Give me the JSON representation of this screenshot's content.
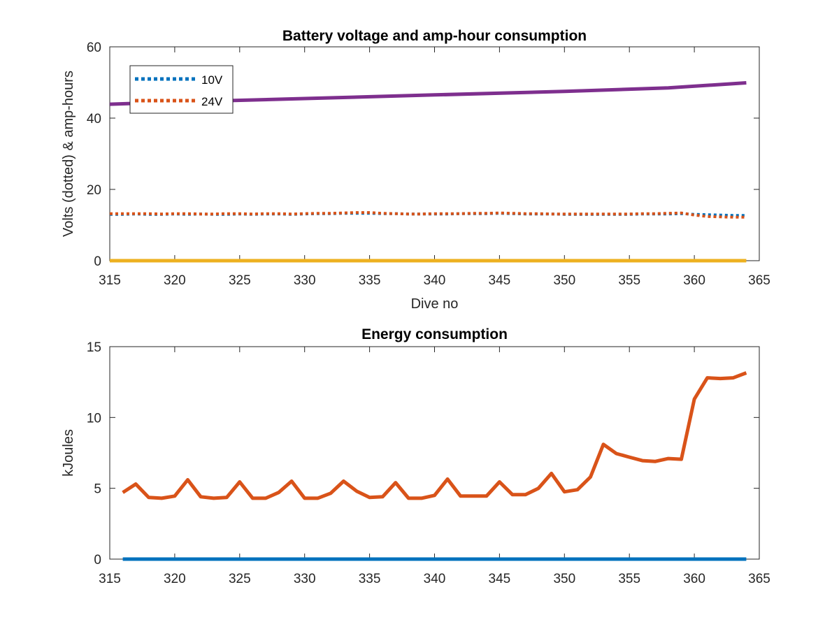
{
  "chart_data": [
    {
      "type": "line",
      "title": "Battery voltage and amp-hour consumption",
      "xlabel": "Dive no",
      "ylabel": "Volts (dotted) & amp-hours",
      "xlim": [
        315,
        365
      ],
      "ylim": [
        0,
        60
      ],
      "xticks": [
        315,
        320,
        325,
        330,
        335,
        340,
        345,
        350,
        355,
        360,
        365
      ],
      "yticks": [
        0,
        20,
        40,
        60
      ],
      "grid": false,
      "legend_location": "top-left",
      "series": [
        {
          "name": "10V",
          "color": "#0072BD",
          "style": "dotted",
          "x": [
            315,
            316,
            317,
            318,
            319,
            320,
            321,
            322,
            323,
            324,
            325,
            326,
            327,
            328,
            329,
            330,
            331,
            332,
            333,
            334,
            335,
            336,
            337,
            338,
            339,
            340,
            341,
            342,
            343,
            344,
            345,
            346,
            347,
            348,
            349,
            350,
            351,
            352,
            353,
            354,
            355,
            356,
            357,
            358,
            359,
            360,
            361,
            362,
            363,
            364
          ],
          "y": [
            13.0,
            13.0,
            13.1,
            13.0,
            13.0,
            13.1,
            13.0,
            13.1,
            13.0,
            13.0,
            13.1,
            13.0,
            13.1,
            13.1,
            13.0,
            13.1,
            13.2,
            13.2,
            13.3,
            13.3,
            13.3,
            13.2,
            13.2,
            13.1,
            13.1,
            13.1,
            13.1,
            13.2,
            13.2,
            13.2,
            13.3,
            13.2,
            13.1,
            13.1,
            13.1,
            13.0,
            13.0,
            13.0,
            13.0,
            13.0,
            13.0,
            13.1,
            13.1,
            13.1,
            13.2,
            13.0,
            12.9,
            12.8,
            12.7,
            12.7
          ]
        },
        {
          "name": "24V",
          "color": "#D95319",
          "style": "dotted",
          "x": [
            315,
            316,
            317,
            318,
            319,
            320,
            321,
            322,
            323,
            324,
            325,
            326,
            327,
            328,
            329,
            330,
            331,
            332,
            333,
            334,
            335,
            336,
            337,
            338,
            339,
            340,
            341,
            342,
            343,
            344,
            345,
            346,
            347,
            348,
            349,
            350,
            351,
            352,
            353,
            354,
            355,
            356,
            357,
            358,
            359,
            360,
            361,
            362,
            363,
            364
          ],
          "y": [
            13.2,
            13.2,
            13.2,
            13.2,
            13.1,
            13.2,
            13.2,
            13.1,
            13.1,
            13.2,
            13.2,
            13.1,
            13.2,
            13.2,
            13.1,
            13.2,
            13.3,
            13.3,
            13.4,
            13.5,
            13.5,
            13.3,
            13.2,
            13.1,
            13.1,
            13.2,
            13.2,
            13.2,
            13.3,
            13.3,
            13.4,
            13.3,
            13.2,
            13.2,
            13.1,
            13.1,
            13.1,
            13.1,
            13.1,
            13.1,
            13.1,
            13.2,
            13.2,
            13.3,
            13.4,
            12.8,
            12.4,
            12.3,
            12.2,
            12.2
          ]
        },
        {
          "color": "#7E2F8E",
          "style": "solid",
          "x": [
            315,
            320,
            330,
            340,
            350,
            358,
            364
          ],
          "y": [
            43.9,
            44.5,
            45.5,
            46.5,
            47.5,
            48.5,
            49.9
          ]
        },
        {
          "color": "#EDB120",
          "style": "solid",
          "x": [
            315,
            364
          ],
          "y": [
            0,
            0
          ]
        }
      ],
      "legend": [
        {
          "label": "10V",
          "color": "#0072BD"
        },
        {
          "label": "24V",
          "color": "#D95319"
        }
      ]
    },
    {
      "type": "line",
      "title": "Energy consumption",
      "xlabel": "",
      "ylabel": "kJoules",
      "xlim": [
        315,
        365
      ],
      "ylim": [
        0,
        15
      ],
      "xticks": [
        315,
        320,
        325,
        330,
        335,
        340,
        345,
        350,
        355,
        360,
        365
      ],
      "yticks": [
        0,
        5,
        10,
        15
      ],
      "grid": false,
      "series": [
        {
          "color": "#D95319",
          "style": "solid",
          "x": [
            316,
            317,
            318,
            319,
            320,
            321,
            322,
            323,
            324,
            325,
            326,
            327,
            328,
            329,
            330,
            331,
            332,
            333,
            334,
            335,
            336,
            337,
            338,
            339,
            340,
            341,
            342,
            343,
            344,
            345,
            346,
            347,
            348,
            349,
            350,
            351,
            352,
            353,
            354,
            355,
            356,
            357,
            358,
            359,
            360,
            361,
            362,
            363,
            364
          ],
          "y": [
            4.7,
            5.3,
            4.35,
            4.3,
            4.45,
            5.6,
            4.4,
            4.3,
            4.35,
            5.45,
            4.3,
            4.3,
            4.7,
            5.5,
            4.3,
            4.3,
            4.65,
            5.5,
            4.8,
            4.35,
            4.4,
            5.4,
            4.3,
            4.3,
            4.5,
            5.65,
            4.45,
            4.45,
            4.45,
            5.45,
            4.55,
            4.55,
            5.0,
            6.05,
            4.75,
            4.9,
            5.8,
            8.1,
            7.45,
            7.2,
            6.95,
            6.9,
            7.1,
            7.05,
            11.3,
            12.8,
            12.75,
            12.8,
            13.15
          ]
        },
        {
          "color": "#0072BD",
          "style": "solid",
          "x": [
            316,
            364
          ],
          "y": [
            0,
            0
          ]
        }
      ]
    }
  ]
}
